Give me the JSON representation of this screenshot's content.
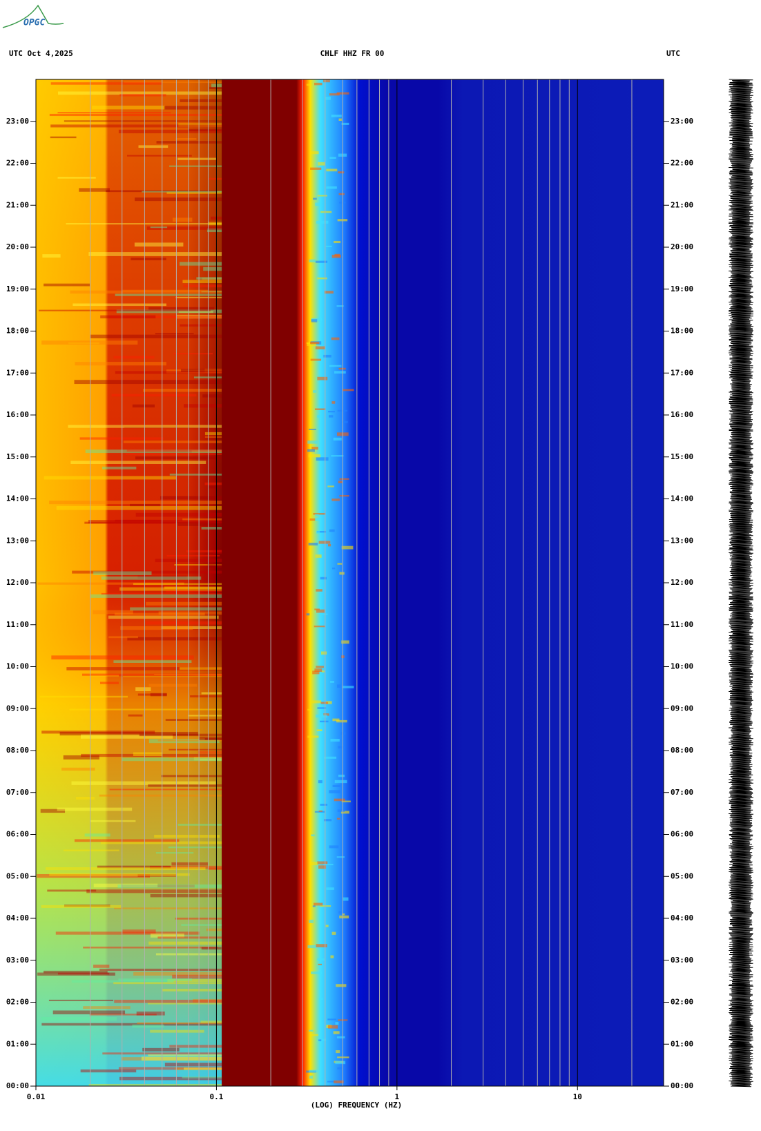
{
  "logo": "OPGC",
  "chart_data": {
    "type": "spectrogram",
    "title": "CHLF HHZ FR 00",
    "subtitle": "UTC  Oct 4,2025",
    "y2_label": "UTC",
    "x_label": "(LOG) FREQUENCY (HZ)",
    "x_scale": "log",
    "xlim": [
      0.01,
      30
    ],
    "xticks": [
      {
        "value": 0.01,
        "label": "0.01"
      },
      {
        "value": 0.1,
        "label": "0.1"
      },
      1,
      10
    ],
    "x_minor_ticks": [
      0.02,
      0.03,
      0.04,
      0.05,
      0.06,
      0.07,
      0.08,
      0.09,
      0.2,
      0.3,
      0.4,
      0.5,
      0.6,
      0.7,
      0.8,
      0.9,
      2,
      3,
      4,
      5,
      6,
      7,
      8,
      9,
      20
    ],
    "ylim": [
      0,
      24
    ],
    "yticks": [
      {
        "value": 0,
        "label": "00:00"
      },
      {
        "value": 1,
        "label": "01:00"
      },
      {
        "value": 2,
        "label": "02:00"
      },
      {
        "value": 3,
        "label": "03:00"
      },
      {
        "value": 4,
        "label": "04:00"
      },
      {
        "value": 5,
        "label": "05:00"
      },
      {
        "value": 6,
        "label": "06:00"
      },
      {
        "value": 7,
        "label": "07:00"
      },
      {
        "value": 8,
        "label": "08:00"
      },
      {
        "value": 9,
        "label": "09:00"
      },
      {
        "value": 10,
        "label": "10:00"
      },
      {
        "value": 11,
        "label": "11:00"
      },
      {
        "value": 12,
        "label": "12:00"
      },
      {
        "value": 13,
        "label": "13:00"
      },
      {
        "value": 14,
        "label": "14:00"
      },
      {
        "value": 15,
        "label": "15:00"
      },
      {
        "value": 16,
        "label": "16:00"
      },
      {
        "value": 17,
        "label": "17:00"
      },
      {
        "value": 18,
        "label": "18:00"
      },
      {
        "value": 19,
        "label": "19:00"
      },
      {
        "value": 20,
        "label": "20:00"
      },
      {
        "value": 21,
        "label": "21:00"
      },
      {
        "value": 22,
        "label": "22:00"
      },
      {
        "value": 23,
        "label": "23:00"
      }
    ],
    "grid": true
  }
}
